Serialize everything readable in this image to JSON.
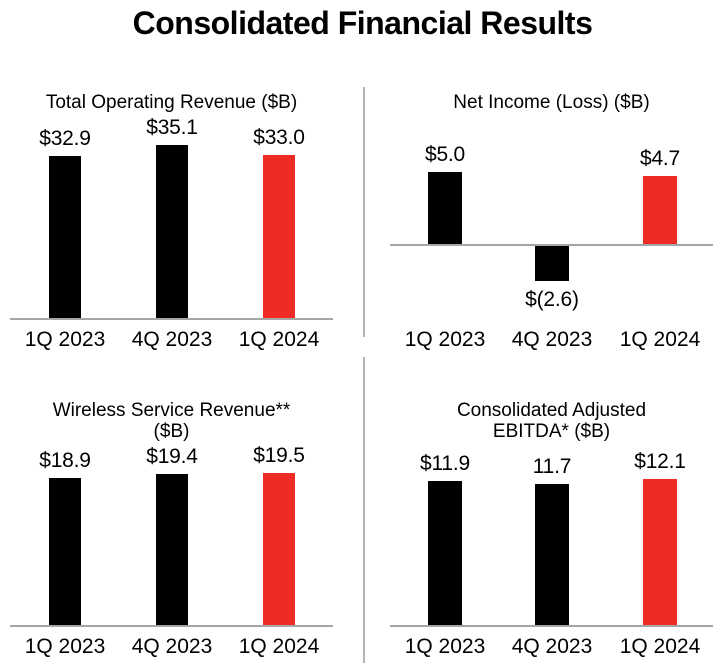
{
  "page_title": "Consolidated Financial Results",
  "colors": {
    "bar_black": "#000000",
    "bar_red": "#ee2b24",
    "axis_line": "#a6a6a6",
    "divider": "#b4b4b4",
    "text": "#000000",
    "background": "#ffffff"
  },
  "chart_data": [
    {
      "type": "bar",
      "title": "Total Operating Revenue ($B)",
      "title_lines": [
        "Total Operating Revenue ($B)"
      ],
      "categories": [
        "1Q 2023",
        "4Q 2023",
        "1Q 2024"
      ],
      "values": [
        32.9,
        35.1,
        33.0
      ],
      "value_labels": [
        "$32.9",
        "$35.1",
        "$33.0"
      ],
      "bar_colors": [
        "black",
        "black",
        "red"
      ],
      "xlabel": "",
      "ylabel": "",
      "ylim": [
        0,
        36
      ],
      "grid": false,
      "legend": false
    },
    {
      "type": "bar",
      "title": "Net Income (Loss) ($B)",
      "title_lines": [
        "Net Income (Loss) ($B)"
      ],
      "categories": [
        "1Q 2023",
        "4Q 2023",
        "1Q 2024"
      ],
      "values": [
        5.0,
        -2.6,
        4.7
      ],
      "value_labels": [
        "$5.0",
        "$(2.6)",
        "$4.7"
      ],
      "bar_colors": [
        "black",
        "black",
        "red"
      ],
      "xlabel": "",
      "ylabel": "",
      "ylim": [
        -3.5,
        5.5
      ],
      "grid": false,
      "legend": false
    },
    {
      "type": "bar",
      "title": "Wireless Service Revenue** ($B)",
      "title_lines": [
        "Wireless Service Revenue**",
        "($B)"
      ],
      "categories": [
        "1Q 2023",
        "4Q 2023",
        "1Q 2024"
      ],
      "values": [
        18.9,
        19.4,
        19.5
      ],
      "value_labels": [
        "$18.9",
        "$19.4",
        "$19.5"
      ],
      "bar_colors": [
        "black",
        "black",
        "red"
      ],
      "xlabel": "",
      "ylabel": "",
      "ylim": [
        0,
        20
      ],
      "grid": false,
      "legend": false
    },
    {
      "type": "bar",
      "title": "Consolidated Adjusted EBITDA* ($B)",
      "title_lines": [
        "Consolidated Adjusted",
        "EBITDA* ($B)"
      ],
      "categories": [
        "1Q 2023",
        "4Q 2023",
        "1Q 2024"
      ],
      "values": [
        11.9,
        11.7,
        12.1
      ],
      "value_labels": [
        "$11.9",
        "11.7",
        "$12.1"
      ],
      "bar_colors": [
        "black",
        "black",
        "red"
      ],
      "xlabel": "",
      "ylabel": "",
      "ylim": [
        0,
        12.5
      ],
      "grid": false,
      "legend": false
    }
  ]
}
